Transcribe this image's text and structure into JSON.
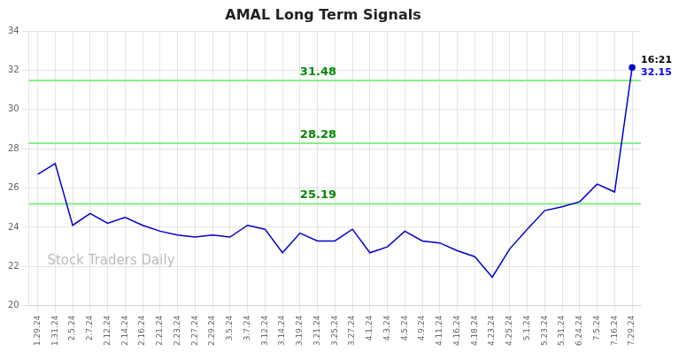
{
  "chart_data": {
    "type": "line",
    "title": "AMAL Long Term Signals",
    "categories": [
      "1.29.24",
      "1.31.24",
      "2.5.24",
      "2.7.24",
      "2.12.24",
      "2.14.24",
      "2.16.24",
      "2.21.24",
      "2.23.24",
      "2.27.24",
      "2.29.24",
      "3.5.24",
      "3.7.24",
      "3.12.24",
      "3.14.24",
      "3.19.24",
      "3.21.24",
      "3.25.24",
      "3.27.24",
      "4.1.24",
      "4.3.24",
      "4.5.24",
      "4.9.24",
      "4.11.24",
      "4.16.24",
      "4.18.24",
      "4.23.24",
      "4.25.24",
      "5.1.24",
      "5.23.24",
      "5.31.24",
      "6.24.24",
      "7.5.24",
      "7.16.24",
      "7.29.24"
    ],
    "values": [
      26.7,
      27.25,
      24.1,
      24.7,
      24.2,
      24.5,
      24.1,
      23.8,
      23.6,
      23.5,
      23.6,
      23.5,
      24.1,
      23.9,
      22.7,
      23.7,
      23.3,
      23.3,
      23.9,
      22.7,
      23.0,
      23.8,
      23.3,
      23.2,
      22.8,
      22.5,
      21.45,
      22.9,
      23.9,
      24.85,
      25.05,
      25.3,
      26.2,
      25.8,
      32.15
    ],
    "color": "#0000cc",
    "ylim": [
      20,
      34
    ],
    "yticks": [
      20,
      22,
      24,
      26,
      28,
      30,
      32,
      34
    ],
    "grid": true,
    "hlines": [
      {
        "value": 31.48,
        "label": "31.48",
        "color": "#88ee88",
        "label_color": "#008800"
      },
      {
        "value": 28.28,
        "label": "28.28",
        "color": "#88ee88",
        "label_color": "#008800"
      },
      {
        "value": 25.19,
        "label": "25.19",
        "color": "#88ee88",
        "label_color": "#008800"
      }
    ],
    "annotations": [
      {
        "text": "16:21",
        "color": "#000000"
      },
      {
        "text": "32.15",
        "color": "#0000ff"
      }
    ],
    "watermark": {
      "text": "Stock Traders Daily",
      "color": "#bbbbbb"
    }
  }
}
